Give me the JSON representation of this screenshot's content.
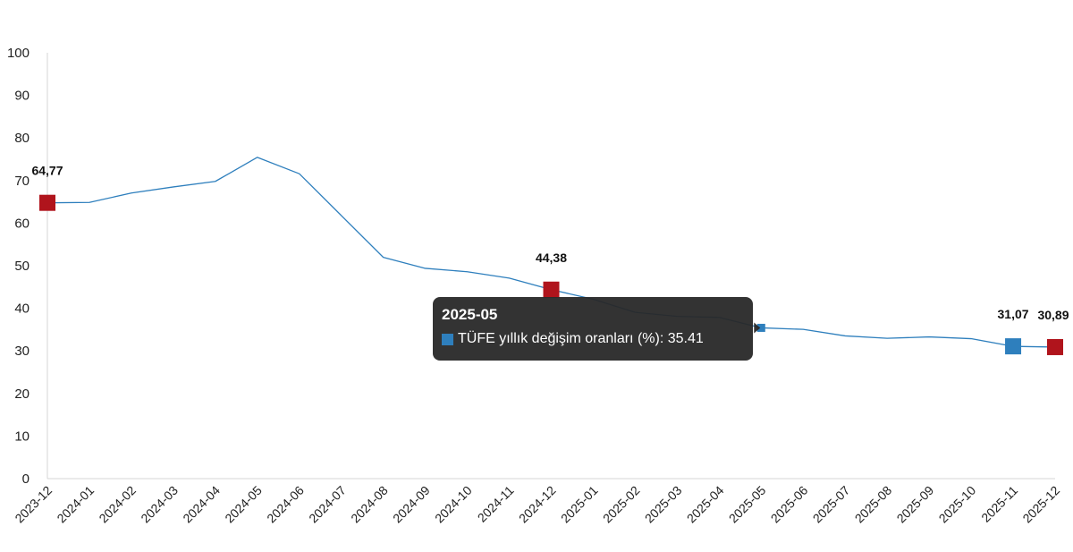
{
  "chart_data": {
    "type": "line",
    "categories": [
      "2023-12",
      "2024-01",
      "2024-02",
      "2024-03",
      "2024-04",
      "2024-05",
      "2024-06",
      "2024-07",
      "2024-08",
      "2024-09",
      "2024-10",
      "2024-11",
      "2024-12",
      "2025-01",
      "2025-02",
      "2025-03",
      "2025-04",
      "2025-05",
      "2025-06",
      "2025-07",
      "2025-08",
      "2025-09",
      "2025-10",
      "2025-11",
      "2025-12"
    ],
    "series": [
      {
        "name": "TÜFE yıllık değişim oranları (%)",
        "values": [
          64.77,
          64.86,
          67.07,
          68.5,
          69.8,
          75.45,
          71.6,
          61.78,
          51.97,
          49.38,
          48.58,
          47.09,
          44.38,
          42.12,
          39.05,
          38.1,
          37.86,
          35.41,
          35.05,
          33.52,
          32.95,
          33.29,
          32.87,
          31.07,
          30.89
        ],
        "color": "#2e7fbd"
      }
    ],
    "ylim": [
      0,
      100
    ],
    "yticks": [
      0,
      10,
      20,
      30,
      40,
      50,
      60,
      70,
      80,
      90,
      100
    ],
    "grid": false,
    "highlights": [
      {
        "index": 0,
        "label": "64,77",
        "color": "#b0141c"
      },
      {
        "index": 12,
        "label": "44,38",
        "color": "#b0141c"
      },
      {
        "index": 23,
        "label": "31,07",
        "color": "#2e7fbd"
      },
      {
        "index": 24,
        "label": "30,89",
        "color": "#b0141c"
      }
    ],
    "hovered_index": 17
  },
  "tooltip": {
    "title": "2025-05",
    "series_label": "TÜFE yıllık değişim oranları (%)",
    "value": "35.41",
    "swatch_color": "#2e7fbd"
  }
}
